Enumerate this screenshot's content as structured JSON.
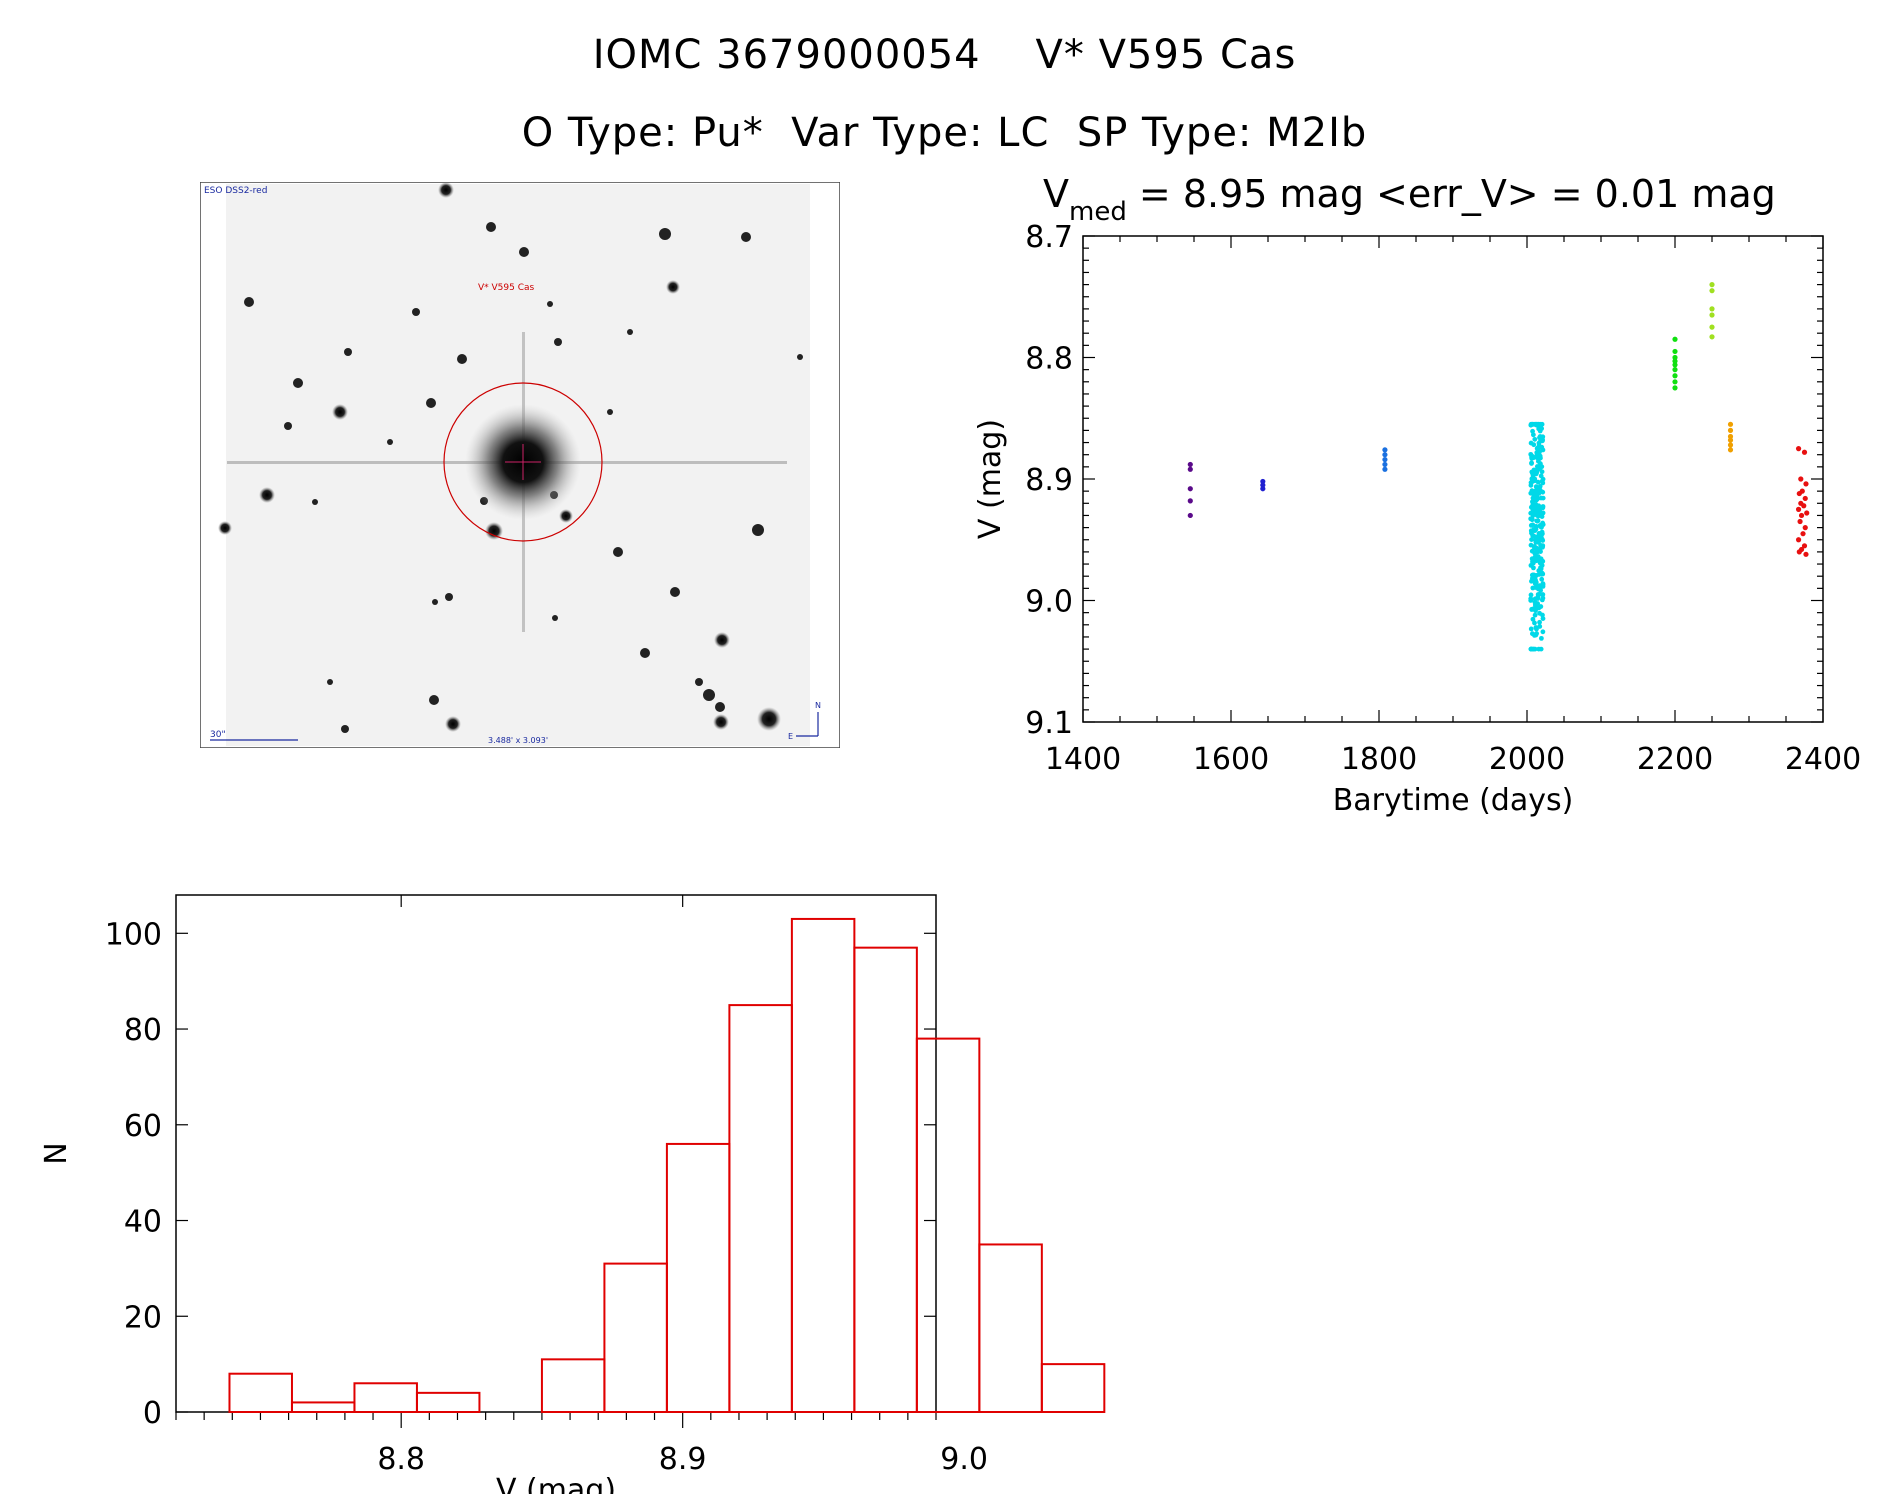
{
  "header": {
    "title_line1": "IOMC 3679000054    V* V595 Cas",
    "title_line2": "O Type: Pu*  Var Type: LC  SP Type: M2Ib"
  },
  "finder_chart": {
    "survey_label": "ESO DSS2-red",
    "target_label": "V* V595 Cas",
    "scale_label": "30\"",
    "fov_label": "3.488' x 3.093'",
    "north_label": "N",
    "east_label": "E"
  },
  "chart_data": [
    {
      "type": "scatter",
      "title_main": "V",
      "title_sub": "med",
      "title_rest": " = 8.95 mag <err_V> = 0.01 mag",
      "xlabel": "Barytime (days)",
      "ylabel": "V (mag)",
      "xlim": [
        1400,
        2400
      ],
      "ylim": [
        9.1,
        8.7
      ],
      "y_inverted": true,
      "x_ticks": [
        "1400",
        "1600",
        "1800",
        "2000",
        "2200",
        "2400"
      ],
      "y_ticks": [
        "8.7",
        "8.8",
        "8.9",
        "9.0",
        "9.1"
      ],
      "series": [
        {
          "color": "#5a0a8a",
          "x": [
            1545,
            1545,
            1545,
            1545,
            1545
          ],
          "y": [
            8.888,
            8.892,
            8.908,
            8.918,
            8.93
          ]
        },
        {
          "color": "#2020d0",
          "x": [
            1643,
            1643,
            1643
          ],
          "y": [
            8.902,
            8.905,
            8.908
          ]
        },
        {
          "color": "#1a70e0",
          "x": [
            1808,
            1808,
            1808,
            1808,
            1808
          ],
          "y": [
            8.876,
            8.88,
            8.884,
            8.888,
            8.892
          ]
        },
        {
          "color": "#00d8e8",
          "x_range": [
            2005,
            2022
          ],
          "y_range": [
            8.855,
            9.04
          ],
          "count": 300
        },
        {
          "color": "#10e010",
          "x": [
            2200,
            2200,
            2200,
            2200,
            2200,
            2200,
            2200,
            2200,
            2200
          ],
          "y": [
            8.785,
            8.795,
            8.8,
            8.803,
            8.806,
            8.81,
            8.815,
            8.82,
            8.825
          ]
        },
        {
          "color": "#a0e020",
          "x": [
            2250,
            2250,
            2250,
            2250,
            2250,
            2250
          ],
          "y": [
            8.74,
            8.745,
            8.76,
            8.765,
            8.775,
            8.783
          ]
        },
        {
          "color": "#f0a000",
          "x": [
            2275,
            2275,
            2275,
            2275,
            2275,
            2275
          ],
          "y": [
            8.855,
            8.86,
            8.865,
            8.868,
            8.872,
            8.876
          ]
        },
        {
          "color": "#e81010",
          "x": [
            2367,
            2375,
            2370,
            2377,
            2372,
            2368,
            2376,
            2370,
            2374,
            2367,
            2378,
            2371,
            2369,
            2376,
            2373,
            2367,
            2375,
            2371,
            2368,
            2377
          ],
          "y": [
            8.875,
            8.878,
            8.9,
            8.904,
            8.91,
            8.912,
            8.916,
            8.92,
            8.922,
            8.925,
            8.928,
            8.93,
            8.935,
            8.94,
            8.945,
            8.95,
            8.955,
            8.958,
            8.96,
            8.962
          ]
        }
      ]
    },
    {
      "type": "bar",
      "histogram": true,
      "xlabel": "V (mag)",
      "ylabel": "N",
      "xlim": [
        8.72,
        8.99
      ],
      "ylim": [
        0,
        108
      ],
      "x_ticks": [
        "8.8",
        "8.9",
        "9.0"
      ],
      "y_ticks": [
        "0",
        "20",
        "40",
        "60",
        "80",
        "100"
      ],
      "bar_color": "#e00000",
      "bin_width": 0.0222,
      "bin_starts": [
        8.739,
        8.7612,
        8.7834,
        8.8056,
        8.8278,
        8.85,
        8.8722,
        8.8944,
        8.9166,
        8.9388,
        8.961,
        8.9832,
        9.0054,
        9.0276
      ],
      "values": [
        8,
        2,
        6,
        4,
        0,
        11,
        31,
        56,
        85,
        103,
        97,
        78,
        35,
        10
      ]
    }
  ]
}
